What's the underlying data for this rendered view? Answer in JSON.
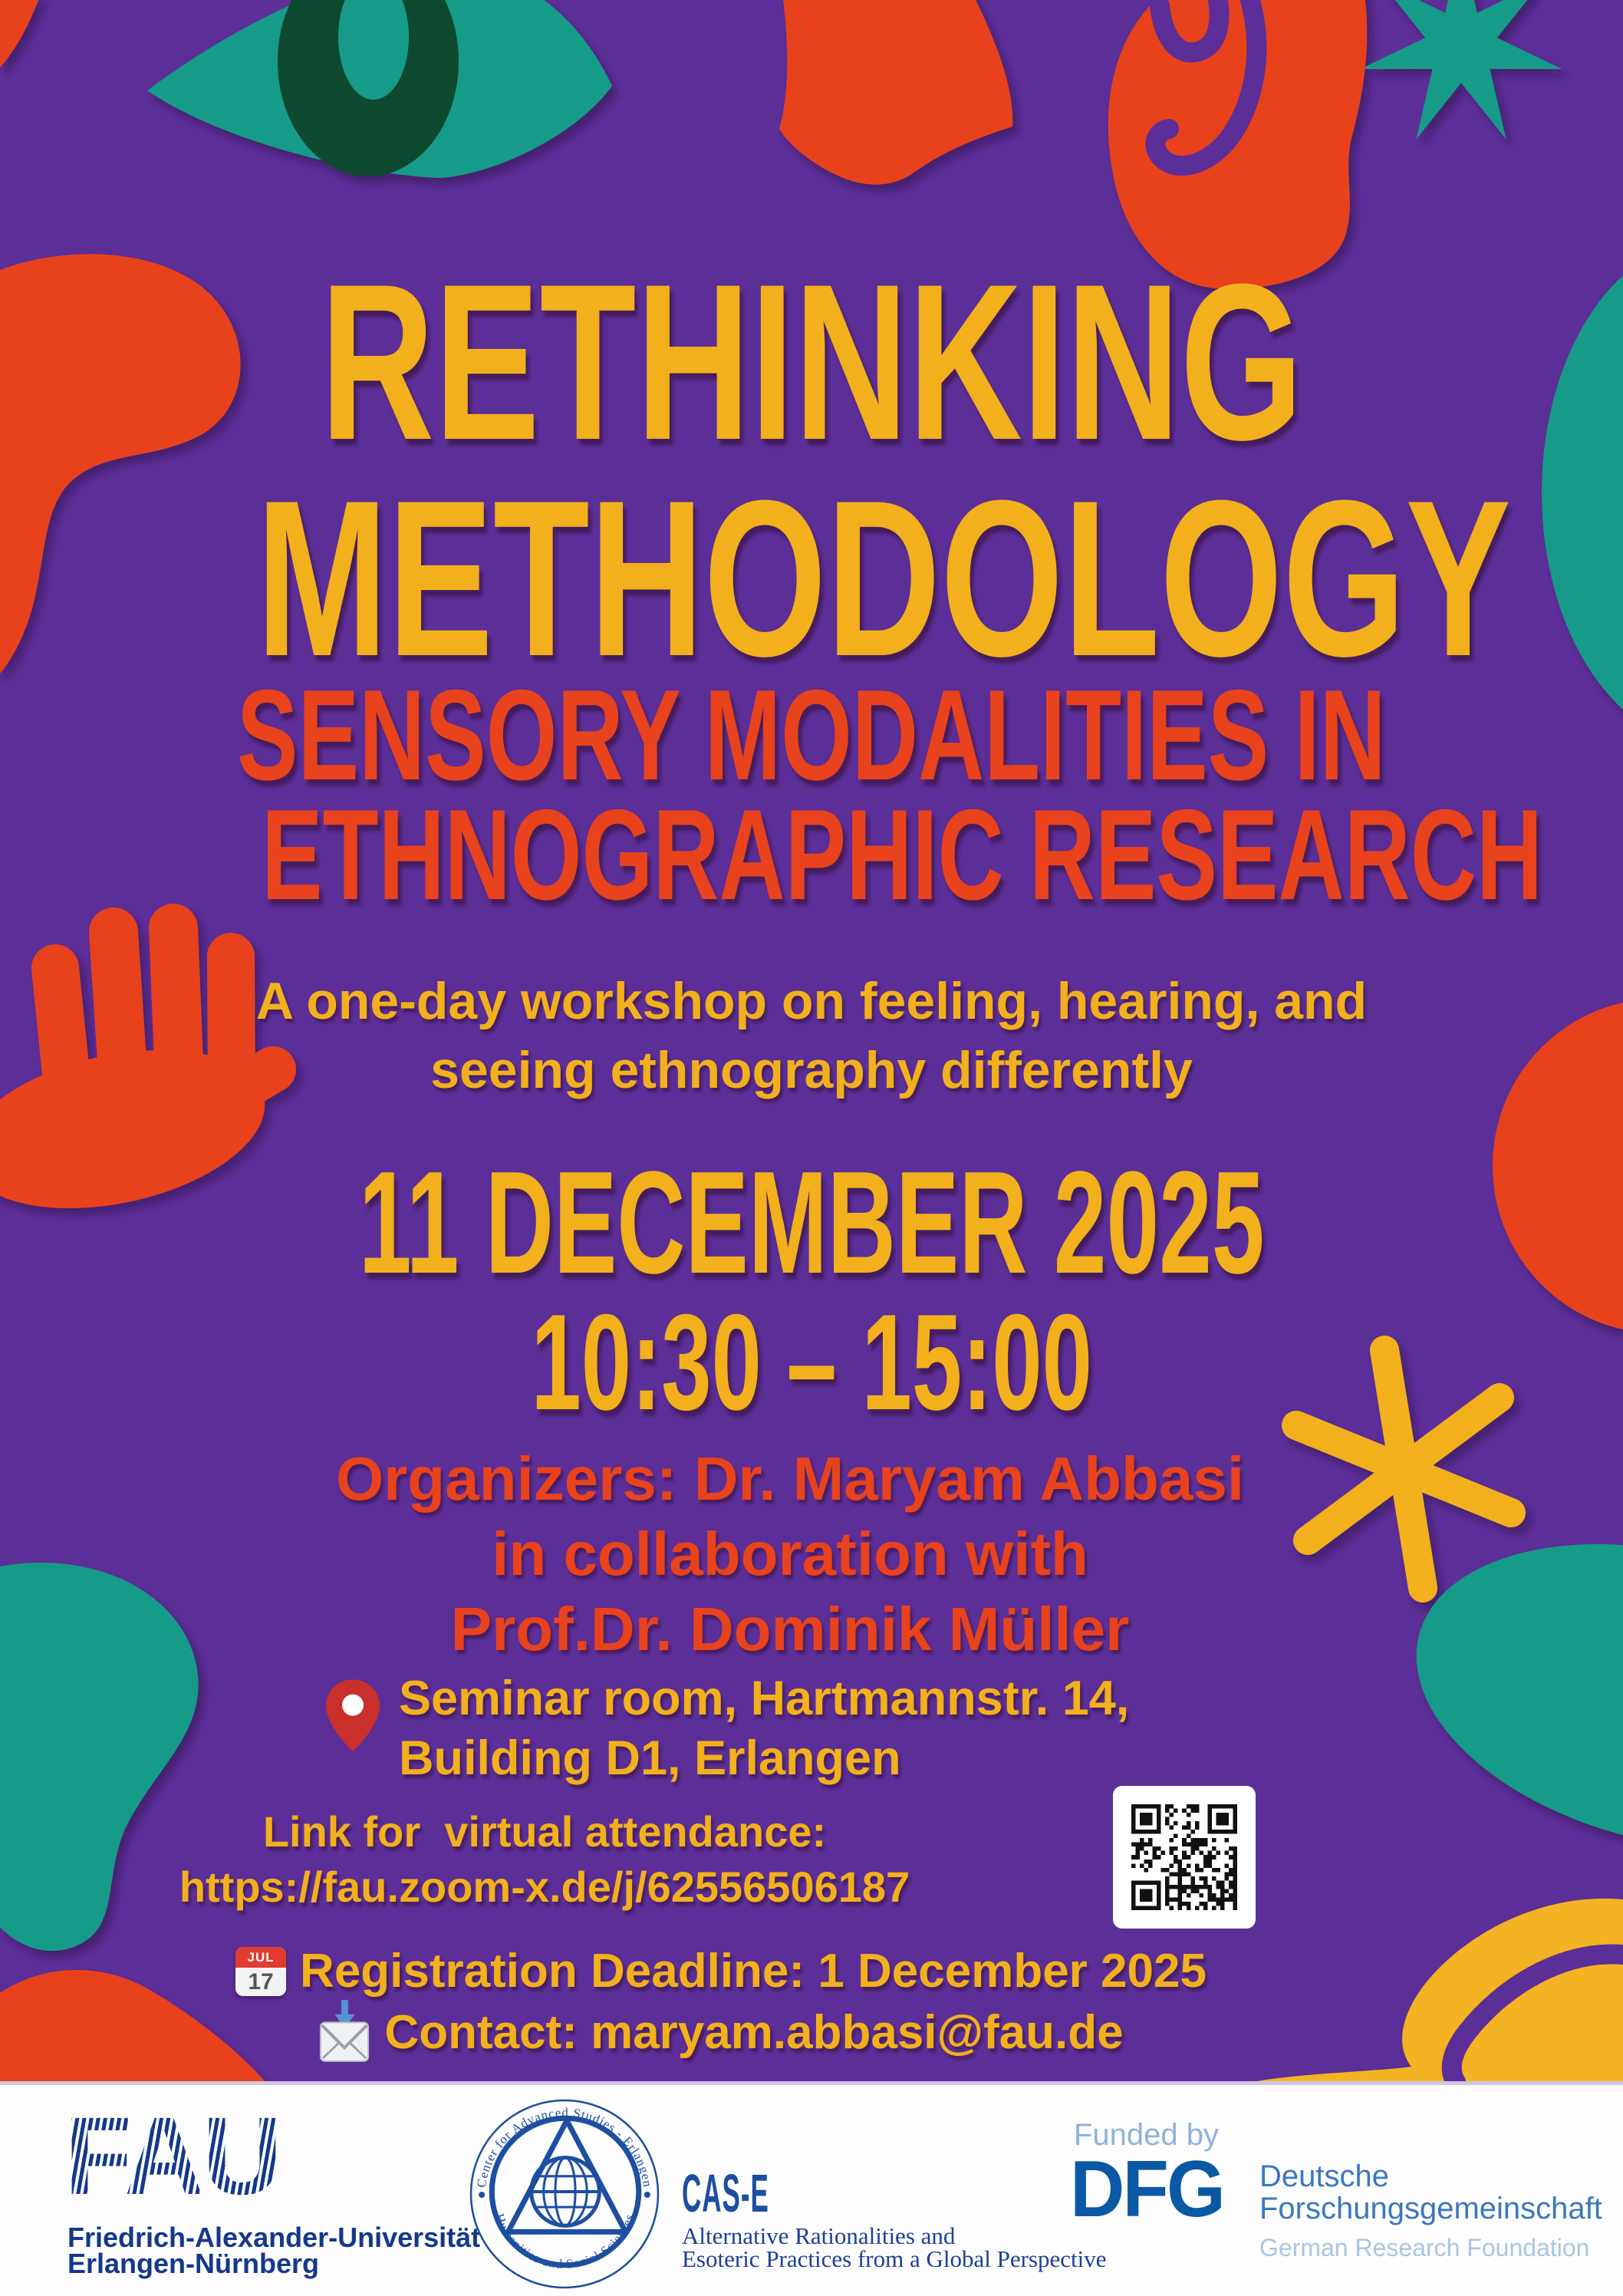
{
  "poster": {
    "title_line1": "RETHINKING",
    "title_line2": "METHODOLOGY",
    "subtitle_line1": "SENSORY MODALITIES IN",
    "subtitle_line2": "ETHNOGRAPHIC RESEARCH",
    "tagline_line1": "A one-day workshop on feeling, hearing, and",
    "tagline_line2": "seeing ethnography differently",
    "date": "11 DECEMBER 2025",
    "time": "10:30 – 15:00",
    "organizers_line1": "Organizers: Dr. Maryam Abbasi",
    "organizers_line2": "in collaboration with",
    "organizers_line3": "Prof.Dr. Dominik Müller",
    "location_line1": "Seminar room, Hartmannstr. 14,",
    "location_line2": "Building D1, Erlangen",
    "virtual_label": "Link for  virtual attendance:",
    "virtual_url": "https://fau.zoom-x.de/j/62556506187",
    "registration": "Registration Deadline: 1 December 2025",
    "contact": "Contact: maryam.abbasi@fau.de",
    "calendar_icon_month": "JUL",
    "calendar_icon_day": "17"
  },
  "footer": {
    "fau_logo": "FAU",
    "fau_name_line1": "Friedrich-Alexander-Universität",
    "fau_name_line2": "Erlangen-Nürnberg",
    "cas_seal_top": "Center for Advanced Studies - Erlangen",
    "cas_seal_bottom": "Humanities and Social Sciences",
    "cas_acronym": "CAS-E",
    "cas_sub_line1": "Alternative Rationalities and",
    "cas_sub_line2": "Esoteric Practices from a Global Perspective",
    "funded_by": "Funded by",
    "dfg_logo": "DFG",
    "dfg_name_line1": "Deutsche",
    "dfg_name_line2": "Forschungsgemeinschaft",
    "dfg_name_en": "German Research Foundation"
  },
  "colors": {
    "background_purple": "#5c2e97",
    "accent_yellow": "#f2b11c",
    "accent_red": "#e8431c",
    "accent_teal": "#189b88",
    "pupil_green": "#0c4a2f",
    "fau_blue": "#14388a",
    "cas_blue": "#1d4fa1",
    "dfg_blue": "#0b58a4",
    "footer_white": "#fdfdfd"
  }
}
